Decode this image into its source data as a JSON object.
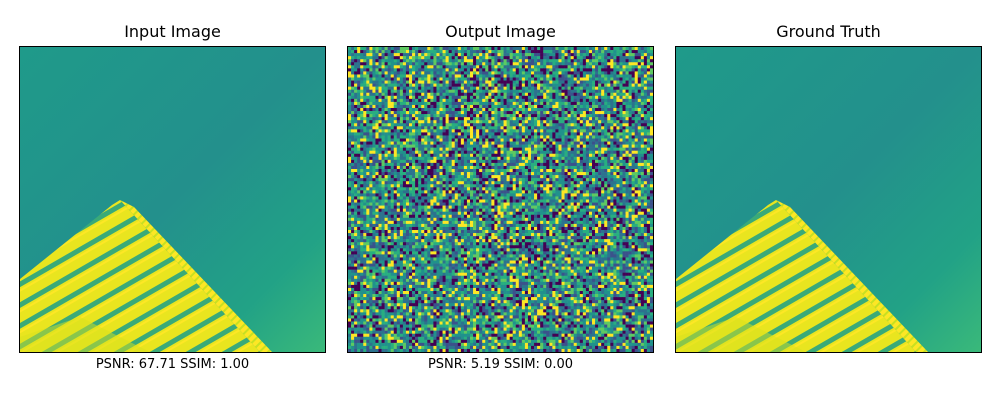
{
  "panels": [
    {
      "title": "Input Image",
      "caption": "PSNR: 67.71 SSIM: 1.00"
    },
    {
      "title": "Output Image",
      "caption": "PSNR: 5.19 SSIM: 0.00"
    },
    {
      "title": "Ground Truth",
      "caption": ""
    }
  ],
  "colors": {
    "viridis_dark": "#440154",
    "viridis_blue": "#3b528b",
    "viridis_teal": "#21918c",
    "viridis_green": "#5ec962",
    "viridis_yellow": "#fde725",
    "background_teal": "#22988a"
  }
}
